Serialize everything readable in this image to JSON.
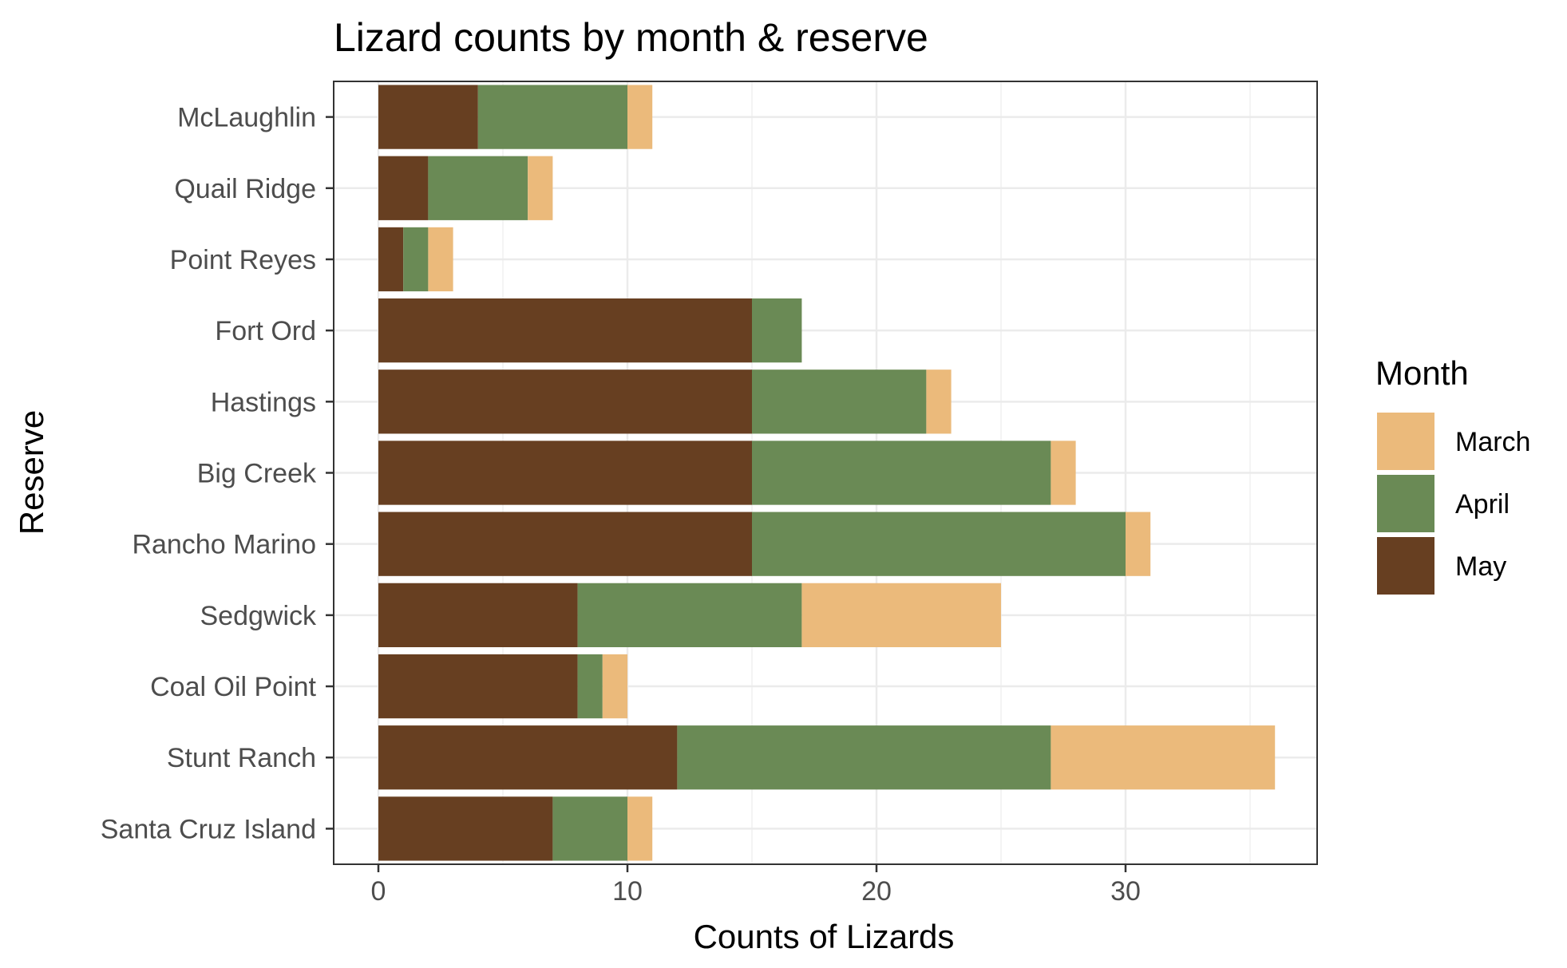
{
  "chart_data": {
    "type": "bar",
    "orientation": "horizontal",
    "stacked": true,
    "title": "Lizard counts by month & reserve",
    "xlabel": "Counts of Lizards",
    "ylabel": "Reserve",
    "xlim": [
      0,
      37
    ],
    "xticks": [
      0,
      10,
      20,
      30
    ],
    "grid": true,
    "legend": {
      "title": "Month",
      "position": "right"
    },
    "categories": [
      "McLaughlin",
      "Quail Ridge",
      "Point Reyes",
      "Fort Ord",
      "Hastings",
      "Big Creek",
      "Rancho Marino",
      "Sedgwick",
      "Coal Oil Point",
      "Stunt Ranch",
      "Santa Cruz Island"
    ],
    "series": [
      {
        "name": "May",
        "color": "#673F21",
        "values": [
          4,
          2,
          1,
          15,
          15,
          15,
          15,
          8,
          8,
          12,
          7
        ]
      },
      {
        "name": "April",
        "color": "#6A8A55",
        "values": [
          6,
          4,
          1,
          2,
          7,
          12,
          15,
          9,
          1,
          15,
          3
        ]
      },
      {
        "name": "March",
        "color": "#EBBA7B",
        "values": [
          1,
          1,
          1,
          0,
          1,
          1,
          1,
          8,
          1,
          9,
          1
        ]
      }
    ],
    "legend_order": [
      "March",
      "April",
      "May"
    ]
  }
}
